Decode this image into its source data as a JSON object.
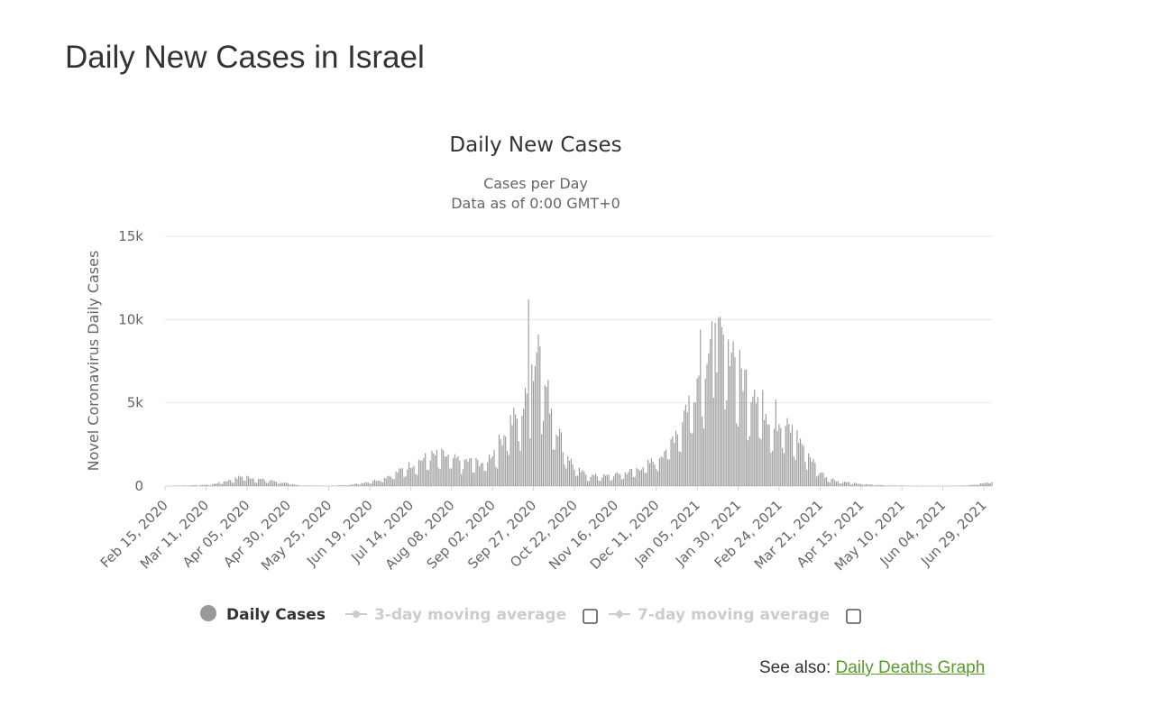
{
  "page": {
    "title": "Daily New Cases in Israel",
    "see_also_label": "See also:",
    "see_also_link": "Daily Deaths Graph"
  },
  "colors": {
    "bar": "#999999",
    "grid": "#e6e6e6",
    "baseline": "#ccd6eb",
    "link": "#5b9a2a",
    "legend_inactive": "#cccccc"
  },
  "chart_data": {
    "type": "bar",
    "title": "Daily New Cases",
    "subtitle_line1": "Cases per Day",
    "subtitle_line2": "Data as of 0:00 GMT+0",
    "ylabel": "Novel Coronavirus Daily Cases",
    "xlabel": "",
    "ylim": [
      0,
      15000
    ],
    "yticks": [
      0,
      5000,
      10000,
      15000
    ],
    "ytick_labels": [
      "0",
      "5k",
      "10k",
      "15k"
    ],
    "x_start_date": "2020-02-15",
    "x_end_date": "2021-07-04",
    "xtick_labels": [
      "Feb 15, 2020",
      "Mar 11, 2020",
      "Apr 05, 2020",
      "Apr 30, 2020",
      "May 25, 2020",
      "Jun 19, 2020",
      "Jul 14, 2020",
      "Aug 08, 2020",
      "Sep 02, 2020",
      "Sep 27, 2020",
      "Oct 22, 2020",
      "Nov 16, 2020",
      "Dec 11, 2020",
      "Jan 05, 2021",
      "Jan 30, 2021",
      "Feb 24, 2021",
      "Mar 21, 2021",
      "Apr 15, 2021",
      "May 10, 2021",
      "Jun 04, 2021",
      "Jun 29, 2021"
    ],
    "grid": true,
    "legend_position": "bottom",
    "series": [
      {
        "name": "Daily Cases",
        "active": true
      },
      {
        "name": "3-day moving average",
        "active": false
      },
      {
        "name": "7-day moving average",
        "active": false
      }
    ],
    "anchors": [
      [
        "2020-02-15",
        0
      ],
      [
        "2020-03-14",
        80
      ],
      [
        "2020-03-22",
        280
      ],
      [
        "2020-03-29",
        450
      ],
      [
        "2020-04-02",
        620
      ],
      [
        "2020-04-08",
        500
      ],
      [
        "2020-04-15",
        380
      ],
      [
        "2020-04-22",
        300
      ],
      [
        "2020-04-30",
        150
      ],
      [
        "2020-05-08",
        30
      ],
      [
        "2020-05-25",
        15
      ],
      [
        "2020-06-05",
        60
      ],
      [
        "2020-06-15",
        200
      ],
      [
        "2020-06-25",
        400
      ],
      [
        "2020-07-05",
        800
      ],
      [
        "2020-07-14",
        1300
      ],
      [
        "2020-07-25",
        1800
      ],
      [
        "2020-08-02",
        1900
      ],
      [
        "2020-08-10",
        1600
      ],
      [
        "2020-08-20",
        1500
      ],
      [
        "2020-08-28",
        1400
      ],
      [
        "2020-09-05",
        2400
      ],
      [
        "2020-09-12",
        3800
      ],
      [
        "2020-09-20",
        4500
      ],
      [
        "2020-09-25",
        6000
      ],
      [
        "2020-09-29",
        8000
      ],
      [
        "2020-10-03",
        6500
      ],
      [
        "2020-10-09",
        4500
      ],
      [
        "2020-10-15",
        2500
      ],
      [
        "2020-10-22",
        1100
      ],
      [
        "2020-10-30",
        650
      ],
      [
        "2020-11-10",
        600
      ],
      [
        "2020-11-20",
        750
      ],
      [
        "2020-12-01",
        1100
      ],
      [
        "2020-12-11",
        1600
      ],
      [
        "2020-12-20",
        2700
      ],
      [
        "2020-12-28",
        4500
      ],
      [
        "2021-01-05",
        6500
      ],
      [
        "2021-01-12",
        8200
      ],
      [
        "2021-01-18",
        8600
      ],
      [
        "2021-01-25",
        7800
      ],
      [
        "2021-02-01",
        6800
      ],
      [
        "2021-02-10",
        5500
      ],
      [
        "2021-02-18",
        4300
      ],
      [
        "2021-02-26",
        3700
      ],
      [
        "2021-03-05",
        3300
      ],
      [
        "2021-03-12",
        2300
      ],
      [
        "2021-03-18",
        1300
      ],
      [
        "2021-03-24",
        600
      ],
      [
        "2021-04-01",
        300
      ],
      [
        "2021-04-10",
        180
      ],
      [
        "2021-04-20",
        90
      ],
      [
        "2021-05-01",
        40
      ],
      [
        "2021-05-20",
        15
      ],
      [
        "2021-06-10",
        15
      ],
      [
        "2021-06-22",
        60
      ],
      [
        "2021-06-27",
        150
      ],
      [
        "2021-07-04",
        300
      ]
    ],
    "peaks": [
      [
        "2020-09-24",
        11200
      ],
      [
        "2020-09-30",
        9100
      ],
      [
        "2020-10-01",
        8400
      ],
      [
        "2020-09-26",
        7300
      ],
      [
        "2020-09-22",
        5900
      ],
      [
        "2021-01-14",
        9900
      ],
      [
        "2021-01-18",
        10100
      ],
      [
        "2021-01-16",
        9800
      ],
      [
        "2021-01-07",
        9400
      ],
      [
        "2021-01-24",
        8800
      ],
      [
        "2021-01-27",
        8700
      ],
      [
        "2021-02-04",
        7000
      ],
      [
        "2021-02-09",
        5800
      ],
      [
        "2021-02-22",
        5200
      ]
    ]
  }
}
